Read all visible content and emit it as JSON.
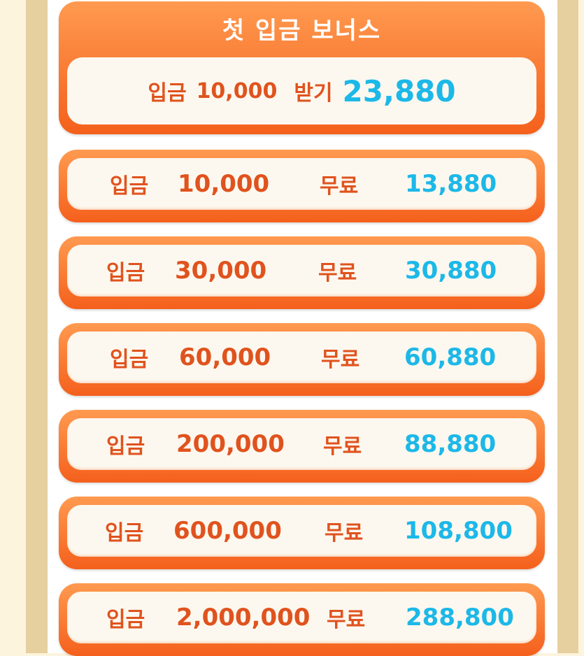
{
  "header": {
    "title": "첫 입금 보너스",
    "deposit_label": "입금",
    "deposit_amount": "10,000",
    "receive_label": "받기",
    "receive_amount": "23,880"
  },
  "rows": [
    {
      "label": "입금",
      "deposit": "10,000",
      "free_label": "무료",
      "free": "13,880"
    },
    {
      "label": "입금",
      "deposit": "30,000",
      "free_label": "무료",
      "free": "30,880"
    },
    {
      "label": "입금",
      "deposit": "60,000",
      "free_label": "무료",
      "free": "60,880"
    },
    {
      "label": "입금",
      "deposit": "200,000",
      "free_label": "무료",
      "free": "88,880"
    },
    {
      "label": "입금",
      "deposit": "600,000",
      "free_label": "무료",
      "free": "108,800"
    },
    {
      "label": "입금",
      "deposit": "2,000,000",
      "free_label": "무료",
      "free": "288,800"
    }
  ],
  "colors": {
    "orange": "#f4601c",
    "text_orange": "#e0531e",
    "blue": "#1cb8e8",
    "frame": "#e6d09f"
  }
}
